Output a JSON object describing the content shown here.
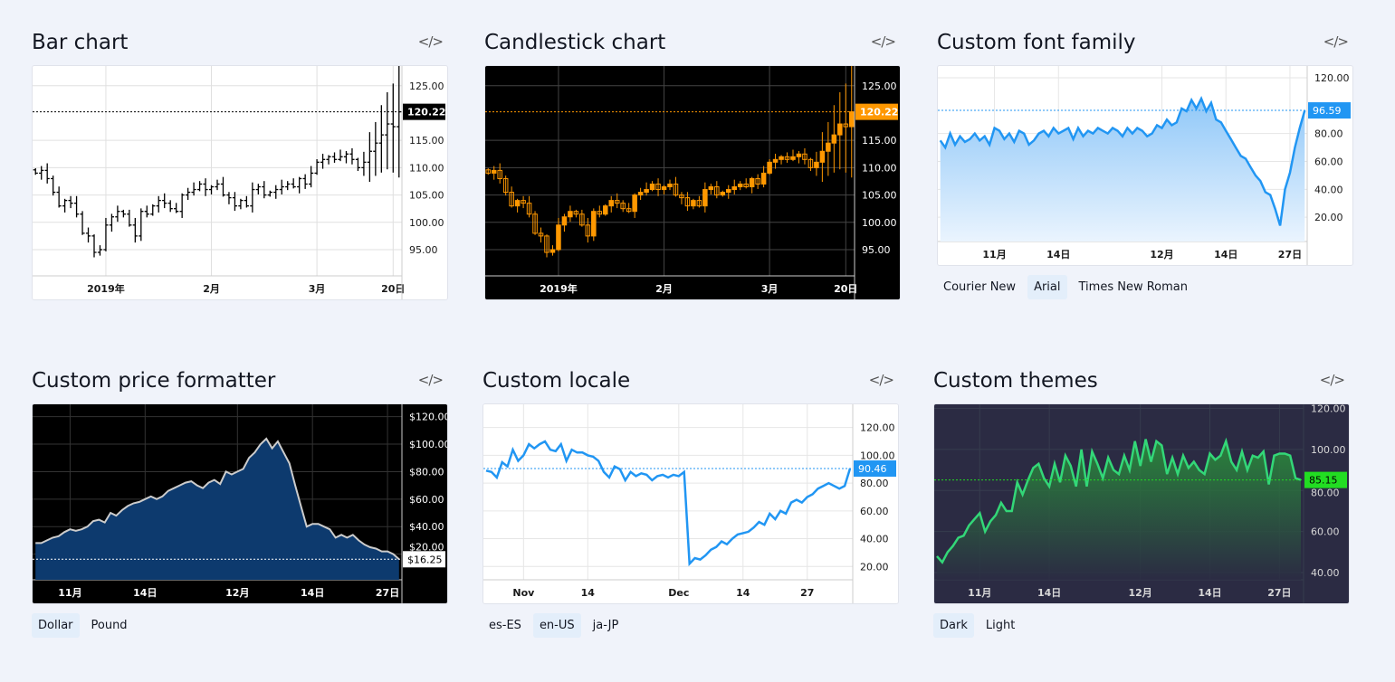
{
  "cards": [
    {
      "title": "Bar chart",
      "code_icon": "</>",
      "buttons": []
    },
    {
      "title": "Candlestick chart",
      "code_icon": "</>",
      "buttons": []
    },
    {
      "title": "Custom font family",
      "code_icon": "</>",
      "buttons": [
        "Courier New",
        "Arial",
        "Times New Roman"
      ],
      "active": 1
    },
    {
      "title": "Custom price formatter",
      "code_icon": "</>",
      "buttons": [
        "Dollar",
        "Pound"
      ],
      "active": 0
    },
    {
      "title": "Custom locale",
      "code_icon": "</>",
      "buttons": [
        "es-ES",
        "en-US",
        "ja-JP"
      ],
      "active": 1
    },
    {
      "title": "Custom themes",
      "code_icon": "</>",
      "buttons": [
        "Dark",
        "Light"
      ],
      "active": 0
    }
  ],
  "chart_data": [
    {
      "type": "ohlc-bar",
      "title": "Bar chart",
      "closes": [
        109,
        109.5,
        108,
        105.5,
        103,
        104,
        103.5,
        101.5,
        98,
        97.5,
        94.5,
        95,
        99.5,
        101,
        102,
        101.5,
        99.5,
        97.5,
        102,
        101.5,
        103,
        104,
        103.5,
        102.5,
        102,
        105,
        105.5,
        106,
        107,
        106,
        106.5,
        107,
        105,
        104.5,
        103,
        104,
        103,
        106,
        106.5,
        105,
        105.5,
        106,
        106.5,
        107,
        106.5,
        108,
        107,
        109,
        111,
        111.5,
        112,
        111.5,
        112,
        112.5,
        111.5,
        110,
        111,
        113,
        114.5,
        116,
        118,
        117.5,
        120.22
      ],
      "ylim": [
        90.2,
        128.6
      ],
      "yticks": [
        "95.00",
        "100.00",
        "105.00",
        "110.00",
        "115.00",
        "125.00"
      ],
      "ytick_values": [
        95,
        100,
        105,
        110,
        115,
        125
      ],
      "xticks": [
        {
          "label": "2019年",
          "index": 12
        },
        {
          "label": "2月",
          "index": 30
        },
        {
          "label": "3月",
          "index": 48
        },
        {
          "label": "20日",
          "index": 61
        }
      ],
      "last_price": "120.22",
      "last_value": 120.22,
      "colors": {
        "bg": "#ffffff",
        "bar": "#000000",
        "grid": "#e0e0e0",
        "text": "#191919",
        "label_bg": "#000000",
        "label_text": "#ffffff"
      }
    },
    {
      "type": "candlestick",
      "title": "Candlestick chart",
      "ylim": [
        90.2,
        128.6
      ],
      "yticks": [
        "95.00",
        "100.00",
        "105.00",
        "110.00",
        "115.00",
        "125.00"
      ],
      "ytick_values": [
        95,
        100,
        105,
        110,
        115,
        125
      ],
      "xticks": [
        {
          "label": "2019年",
          "index": 12
        },
        {
          "label": "2月",
          "index": 30
        },
        {
          "label": "3月",
          "index": 48
        },
        {
          "label": "20日",
          "index": 61
        }
      ],
      "last_price": "120.22",
      "last_value": 120.22,
      "colors": {
        "bg": "#000000",
        "up": "#ff9800",
        "down": "#ff9800",
        "grid": "#444444",
        "text": "#ffffff",
        "label_bg": "#ff9800",
        "label_text": "#ffffff"
      }
    },
    {
      "type": "area",
      "title": "Custom font family",
      "values": [
        75,
        70,
        80,
        72,
        78,
        74,
        76,
        80,
        75,
        78,
        72,
        84,
        82,
        76,
        80,
        74,
        82,
        80,
        72,
        75,
        80,
        82,
        78,
        84,
        80,
        82,
        84,
        76,
        84,
        78,
        82,
        80,
        84,
        82,
        80,
        84,
        82,
        78,
        84,
        80,
        84,
        82,
        78,
        80,
        86,
        84,
        90,
        86,
        88,
        98,
        96,
        104,
        98,
        105,
        96,
        102,
        90,
        88,
        82,
        76,
        70,
        64,
        62,
        56,
        50,
        46,
        38,
        36,
        26,
        14,
        40,
        52,
        70,
        84,
        96.59
      ],
      "ylim": [
        2.6,
        128.4
      ],
      "yticks": [
        "20.00",
        "40.00",
        "60.00",
        "80.00",
        "120.00"
      ],
      "ytick_values": [
        20,
        40,
        60,
        80,
        120
      ],
      "xticks": [
        {
          "label": "11月",
          "index": 11
        },
        {
          "label": "14日",
          "index": 24
        },
        {
          "label": "12月",
          "index": 45
        },
        {
          "label": "14日",
          "index": 58
        },
        {
          "label": "27日",
          "index": 71
        }
      ],
      "last_price": "96.59",
      "last_value": 96.59,
      "colors": {
        "bg": "#ffffff",
        "line": "#2196f3",
        "fill_top": "#90c8f8",
        "fill_bottom": "#eaf4fe",
        "grid": "#e6e6e6",
        "text": "#191919",
        "label_bg": "#2196f3",
        "label_text": "#ffffff"
      }
    },
    {
      "type": "area",
      "title": "Custom price formatter",
      "values": [
        28,
        28,
        30,
        32,
        33,
        36,
        38,
        37,
        38,
        40,
        44,
        45,
        43,
        50,
        48,
        52,
        55,
        57,
        58,
        60,
        62,
        60,
        62,
        66,
        68,
        70,
        72,
        73,
        70,
        68,
        72,
        74,
        71,
        80,
        78,
        80,
        82,
        90,
        94,
        100,
        104,
        97,
        102,
        94,
        86,
        70,
        55,
        40,
        42,
        42,
        40,
        38,
        32,
        34,
        32,
        34,
        30,
        27,
        25,
        24,
        22,
        22,
        20,
        16.25
      ],
      "ylim": [
        1.3,
        129
      ],
      "yticks": [
        "$20.00",
        "$40.00",
        "$60.00",
        "$80.00",
        "$100.00",
        "$120.00"
      ],
      "ytick_values": [
        20,
        40,
        60,
        80,
        100,
        120
      ],
      "xticks": [
        {
          "label": "11月",
          "index": 6
        },
        {
          "label": "14日",
          "index": 19
        },
        {
          "label": "12月",
          "index": 35
        },
        {
          "label": "14日",
          "index": 48
        },
        {
          "label": "27日",
          "index": 61
        }
      ],
      "last_price": "$16.25",
      "last_value": 16.25,
      "colors": {
        "bg": "#000000",
        "line": "#cccccc",
        "fill_top": "#0d3a6e",
        "fill_bottom": "#0d3a6e",
        "grid": "#333333",
        "text": "#ffffff",
        "label_bg": "#ffffff",
        "label_text": "#000000"
      }
    },
    {
      "type": "line",
      "title": "Custom locale",
      "values": [
        89,
        88,
        84,
        95,
        92,
        104,
        96,
        100,
        108,
        105,
        108,
        110,
        104,
        103,
        108,
        96,
        104,
        102,
        102,
        100,
        99,
        96,
        88,
        84,
        92,
        90,
        82,
        88,
        85,
        87,
        86,
        82,
        85,
        86,
        84,
        86,
        85,
        88,
        22,
        26,
        25,
        28,
        32,
        34,
        38,
        36,
        40,
        43,
        44,
        45,
        48,
        52,
        50,
        58,
        54,
        60,
        58,
        66,
        68,
        66,
        70,
        72,
        76,
        78,
        80,
        78,
        76,
        78,
        90.46
      ],
      "ylim": [
        10.4,
        136.7
      ],
      "yticks": [
        "20.00",
        "40.00",
        "60.00",
        "80.00",
        "100.00",
        "120.00"
      ],
      "ytick_values": [
        20,
        40,
        60,
        80,
        100,
        120
      ],
      "xticks": [
        {
          "label": "Nov",
          "index": 7
        },
        {
          "label": "14",
          "index": 19
        },
        {
          "label": "Dec",
          "index": 36
        },
        {
          "label": "14",
          "index": 48
        },
        {
          "label": "27",
          "index": 60
        }
      ],
      "last_price": "90.46",
      "last_value": 90.46,
      "colors": {
        "bg": "#ffffff",
        "line": "#2196f3",
        "grid": "#e6e6e6",
        "text": "#191919",
        "label_bg": "#2196f3",
        "label_text": "#ffffff"
      }
    },
    {
      "type": "area",
      "title": "Custom themes",
      "values": [
        48,
        45,
        50,
        53,
        57,
        58,
        63,
        66,
        69,
        60,
        65,
        68,
        74,
        70,
        70,
        84,
        78,
        85,
        91,
        93,
        86,
        82,
        93,
        84,
        97,
        92,
        82,
        100,
        82,
        99,
        93,
        86,
        96,
        90,
        88,
        97,
        90,
        104,
        92,
        105,
        94,
        104,
        102,
        88,
        96,
        88,
        97,
        91,
        94,
        90,
        88,
        98,
        95,
        97,
        104,
        94,
        90,
        99,
        90,
        97,
        96,
        99,
        83,
        97,
        98,
        98,
        97,
        86,
        85.15
      ],
      "ylim": [
        36.5,
        122
      ],
      "yticks": [
        "40.00",
        "60.00",
        "80.00",
        "100.00",
        "120.00"
      ],
      "ytick_values": [
        40,
        60,
        80,
        100,
        120
      ],
      "xticks": [
        {
          "label": "11月",
          "index": 8
        },
        {
          "label": "14日",
          "index": 21
        },
        {
          "label": "12月",
          "index": 38
        },
        {
          "label": "14日",
          "index": 51
        },
        {
          "label": "27日",
          "index": 64
        }
      ],
      "last_price": "85.15",
      "last_value": 85.15,
      "colors": {
        "bg": "#2b2b43",
        "line": "#33d778",
        "fill_top": "#2a9a3a",
        "fill_bottom": "#2b2b43",
        "grid": "#363c4e",
        "text": "#d9d9d9",
        "label_bg": "#22dd22",
        "label_text": "#000000"
      }
    }
  ]
}
